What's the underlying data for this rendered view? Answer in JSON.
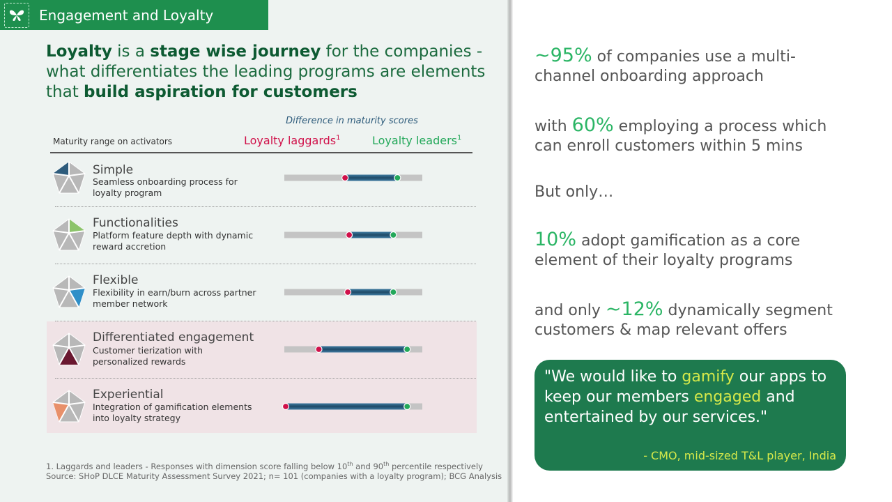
{
  "header": {
    "title": "Engagement and Loyalty",
    "icon": "butterfly-icon"
  },
  "headline": {
    "part1_bold": "Loyalty",
    "part2": " is a ",
    "part3_bold": "stage wise journey",
    "part4": " for the companies - what differentiates the leading programs are elements that ",
    "part5_bold": "build aspiration for customers"
  },
  "table_header": {
    "diff_label": "Difference in maturity scores",
    "range_label": "Maturity range on activators",
    "laggards": "Loyalty laggards",
    "leaders": "Loyalty leaders",
    "footnote_mark": "1"
  },
  "rows": [
    {
      "name": "Simple",
      "desc": "Seamless onboarding process for loyalty program"
    },
    {
      "name": "Functionalities",
      "desc": "Platform feature depth with dynamic reward accretion"
    },
    {
      "name": "Flexible",
      "desc": "Flexibility in earn/burn across partner member network"
    },
    {
      "name": "Differentiated engagement",
      "desc": "Customer tierization with personalized rewards"
    },
    {
      "name": "Experiential",
      "desc": "Integration of gamification elements into loyalty strategy"
    }
  ],
  "colors": {
    "laggard": "#d0114a",
    "leader": "#23a85a",
    "track": "#c4c4c4",
    "bar": "#2f5f7f",
    "highlight_rows": "#f0e3e6"
  },
  "chart_data": {
    "type": "range-bar",
    "categories": [
      "Simple",
      "Functionalities",
      "Flexible",
      "Differentiated engagement",
      "Experiential"
    ],
    "series": [
      {
        "name": "Loyalty laggards",
        "values": [
          0.44,
          0.47,
          0.46,
          0.25,
          0.01
        ]
      },
      {
        "name": "Loyalty leaders",
        "values": [
          0.82,
          0.79,
          0.79,
          0.89,
          0.89
        ]
      }
    ],
    "title": "Difference in maturity scores",
    "xlim": [
      0,
      1
    ]
  },
  "footnotes": {
    "line1_a": "1. Laggards and leaders - Responses with dimension score falling below 10",
    "sup1": "th",
    "line1_b": " and 90",
    "sup2": "th",
    "line1_c": " percentile respectively",
    "line2": "Source: SHoP DLCE Maturity Assessment Survey 2021; n= 101 (companies with a loyalty program); BCG Analysis"
  },
  "stats": [
    {
      "highlight": "~95%",
      "pre": "",
      "text": " of companies use a multi-channel onboarding approach"
    },
    {
      "pre": "with ",
      "highlight": "60%",
      "text": " employing a process which can enroll customers within 5 mins"
    },
    {
      "pre": "But only…",
      "highlight": "",
      "text": ""
    },
    {
      "pre": "",
      "highlight": "10%",
      "text": " adopt gamification as a core element of their loyalty programs"
    },
    {
      "pre": "and only ",
      "highlight": "~12%",
      "text": " dynamically segment customers & map relevant offers"
    }
  ],
  "quote": {
    "p1": "\"We would like to ",
    "h1": "gamify",
    "p2": " our apps to keep our members ",
    "h2": "engaged",
    "p3": " and entertained by our services.\"",
    "attribution": "- CMO, mid-sized T&L player, India"
  }
}
